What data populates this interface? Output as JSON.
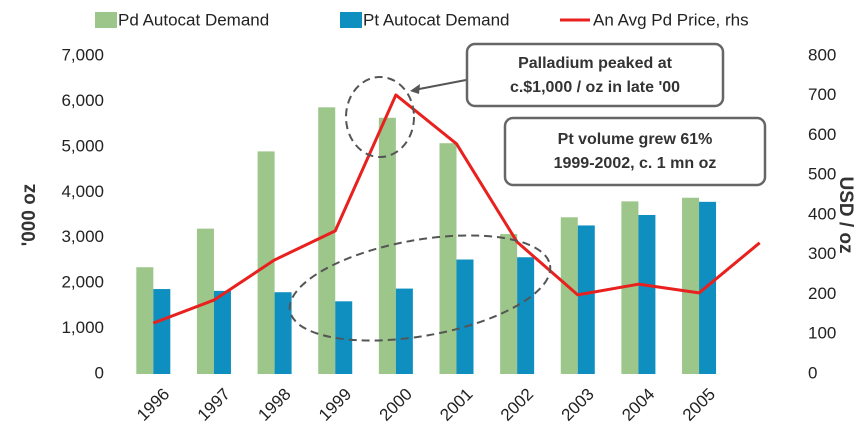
{
  "chart_data": {
    "type": "bar-line",
    "categories": [
      "1996",
      "1997",
      "1998",
      "1999",
      "2000",
      "2001",
      "2002",
      "2003",
      "2004",
      "2005",
      null
    ],
    "series": [
      {
        "name": "Pd Autocat Demand",
        "color": "#9dc68b",
        "values": [
          2350,
          3200,
          4900,
          5870,
          5640,
          5080,
          3080,
          3450,
          3800,
          3880,
          null
        ]
      },
      {
        "name": "Pt Autocat Demand",
        "color": "#0e8fc0",
        "values": [
          1870,
          1830,
          1800,
          1600,
          1880,
          2520,
          2570,
          3270,
          3500,
          3790,
          null
        ]
      },
      {
        "name": "An Avg Pd Price, rhs",
        "color": "#e8201e",
        "axis": "y2",
        "values": [
          128,
          186,
          287,
          360,
          702,
          579,
          332,
          199,
          226,
          204,
          330
        ]
      }
    ],
    "ylabel": "'000 oz",
    "y2label": "USD / oz",
    "ylim": [
      0,
      7000
    ],
    "yticks": [
      0,
      {
        "value": 1000,
        "label": "1,000"
      },
      {
        "value": 2000,
        "label": "2,000"
      },
      {
        "value": 3000,
        "label": "3,000"
      },
      {
        "value": 4000,
        "label": "4,000"
      },
      {
        "value": 5000,
        "label": "5,000"
      },
      {
        "value": 6000,
        "label": "6,000"
      },
      {
        "value": 7000,
        "label": "7,000"
      }
    ],
    "y2lim": [
      0,
      800
    ],
    "y2ticks": [
      0,
      100,
      200,
      300,
      400,
      500,
      600,
      700,
      800
    ],
    "annotations": [
      {
        "lines": [
          "Palladium  peaked at",
          "c.$1,000 / oz in late '00"
        ]
      },
      {
        "lines": [
          "Pt volume grew 61%",
          "1999-2002, c. 1 mn oz"
        ]
      }
    ]
  }
}
